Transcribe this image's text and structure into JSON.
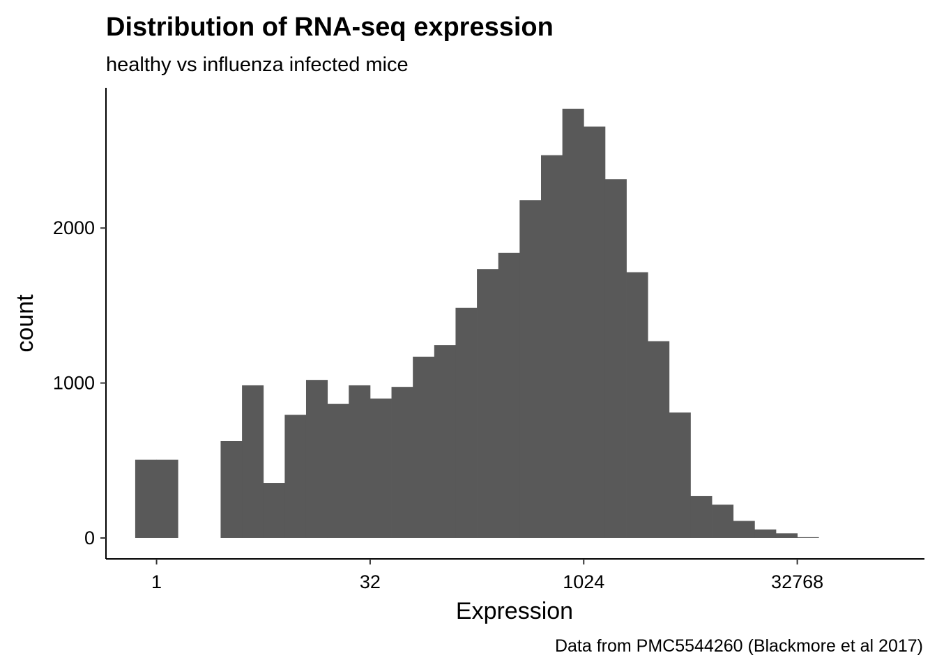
{
  "chart_data": {
    "type": "bar",
    "title": "Distribution of RNA-seq expression",
    "subtitle": "healthy vs influenza infected mice",
    "xlabel": "Expression",
    "ylabel": "count",
    "caption": "Data from PMC5544260 (Blackmore et al 2017)",
    "x_scale": "log2",
    "x_ticks": [
      1,
      32,
      1024,
      32768
    ],
    "x_tick_labels": [
      "1",
      "32",
      "1024",
      "32768"
    ],
    "xlim": [
      0.44,
      258000
    ],
    "y_ticks": [
      0,
      1000,
      2000
    ],
    "y_tick_labels": [
      "0",
      "1000",
      "2000"
    ],
    "ylim": [
      -135,
      2905
    ],
    "grid": false,
    "bins": [
      {
        "x0": 0.707,
        "x1": 1.414,
        "count": 505
      },
      {
        "x0": 1.414,
        "x1": 2.828,
        "count": 0
      },
      {
        "x0": 2.828,
        "x1": 5.657,
        "count": 625
      },
      {
        "x0": 5.657,
        "x1": 11.31,
        "count": 985
      },
      {
        "x0": 11.31,
        "x1": 22.63,
        "count": 795
      },
      {
        "x0": 22.63,
        "x1": 45.25,
        "count": 870
      },
      {
        "x0": 45.25,
        "x1": 90.51,
        "count": 975
      },
      {
        "x0": 90.51,
        "x1": 181.0,
        "count": 1245
      },
      {
        "x0": 181.0,
        "x1": 362.0,
        "count": 1735
      },
      {
        "x0": 362.0,
        "x1": 724.1,
        "count": 2180
      },
      {
        "x0": 724.1,
        "x1": 1448.2,
        "count": 2770
      },
      {
        "x0": 1448.2,
        "x1": 2896.3,
        "count": 2315
      },
      {
        "x0": 2896.3,
        "x1": 5792.6,
        "count": 1270
      },
      {
        "x0": 5792.6,
        "x1": 11585.2,
        "count": 270
      },
      {
        "x0": 11585.2,
        "x1": 23170.5,
        "count": 110
      },
      {
        "x0": 23170.5,
        "x1": 46341.0,
        "count": 30
      }
    ],
    "half_bins": [
      {
        "x0": 0.707,
        "x1": 1.0,
        "count": 505
      },
      {
        "x0": 1.0,
        "x1": 1.414,
        "count": 505
      },
      {
        "x0": 2.828,
        "x1": 4.0,
        "count": 625
      },
      {
        "x0": 4.0,
        "x1": 5.657,
        "count": 985
      },
      {
        "x0": 5.657,
        "x1": 8.0,
        "count": 355
      },
      {
        "x0": 8.0,
        "x1": 11.31,
        "count": 795
      },
      {
        "x0": 11.31,
        "x1": 16.0,
        "count": 1020
      },
      {
        "x0": 16.0,
        "x1": 22.63,
        "count": 865
      },
      {
        "x0": 22.63,
        "x1": 32.0,
        "count": 985
      },
      {
        "x0": 32.0,
        "x1": 45.25,
        "count": 900
      },
      {
        "x0": 45.25,
        "x1": 64.0,
        "count": 975
      },
      {
        "x0": 64.0,
        "x1": 90.51,
        "count": 1170
      },
      {
        "x0": 90.51,
        "x1": 128.0,
        "count": 1245
      },
      {
        "x0": 128.0,
        "x1": 181.0,
        "count": 1485
      },
      {
        "x0": 181.0,
        "x1": 256.0,
        "count": 1735
      },
      {
        "x0": 256.0,
        "x1": 362.0,
        "count": 1840
      },
      {
        "x0": 362.0,
        "x1": 512.0,
        "count": 2180
      },
      {
        "x0": 512.0,
        "x1": 724.1,
        "count": 2470
      },
      {
        "x0": 724.1,
        "x1": 1024.0,
        "count": 2770
      },
      {
        "x0": 1024.0,
        "x1": 1448.2,
        "count": 2655
      },
      {
        "x0": 1448.2,
        "x1": 2048.0,
        "count": 2315
      },
      {
        "x0": 2048.0,
        "x1": 2896.3,
        "count": 1715
      },
      {
        "x0": 2896.3,
        "x1": 4096.0,
        "count": 1270
      },
      {
        "x0": 4096.0,
        "x1": 5792.6,
        "count": 810
      },
      {
        "x0": 5792.6,
        "x1": 8192.0,
        "count": 270
      },
      {
        "x0": 8192.0,
        "x1": 11585.2,
        "count": 215
      },
      {
        "x0": 11585.2,
        "x1": 16384.0,
        "count": 110
      },
      {
        "x0": 16384.0,
        "x1": 23170.5,
        "count": 55
      },
      {
        "x0": 23170.5,
        "x1": 32768.0,
        "count": 30
      },
      {
        "x0": 32768.0,
        "x1": 46341.0,
        "count": 5
      }
    ]
  }
}
